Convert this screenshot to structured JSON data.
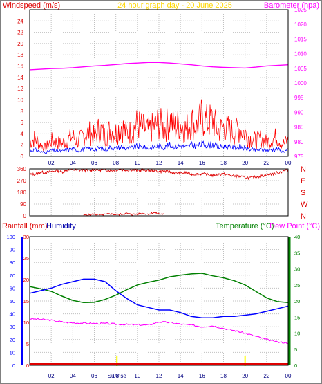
{
  "header": {
    "left_label": "Windspeed (m/s)",
    "center_label": "24 hour graph day - 20 June 2025",
    "right_label": "Barometer (hpa)"
  },
  "bottom_header": {
    "rain_label": "Rainfall (mm)",
    "humidity_label": "Humidity",
    "temp_label": "Temperature (°C)",
    "dew_label": "Dew Point (°C)"
  },
  "x_ticks": [
    "02",
    "04",
    "06",
    "08",
    "10",
    "12",
    "14",
    "16",
    "18",
    "20",
    "22",
    "00"
  ],
  "sunrise_label": "Sunrise",
  "colors": {
    "frame": "#000000",
    "grid": "#c0c0c0",
    "wind_gust": "#ff0000",
    "wind_avg": "#0000ff",
    "pressure": "#ff00ff",
    "direction": "#dd0000",
    "temperature": "#008000",
    "humidity": "#0000ff",
    "dew": "#ff00ff",
    "rain": "#dd0000",
    "sun_marker": "#ffff00",
    "title": "#ffd700"
  },
  "chart_data": [
    {
      "type": "line",
      "name": "wind-pressure",
      "x_unit": "hour",
      "xlim": [
        0,
        24
      ],
      "y_left": {
        "label": "Windspeed (m/s)",
        "lim": [
          0,
          26
        ],
        "ticks": [
          0,
          2,
          4,
          6,
          8,
          10,
          12,
          14,
          16,
          18,
          20,
          22,
          24
        ]
      },
      "y_right": {
        "label": "Barometer (hpa)",
        "lim": [
          975,
          1025
        ],
        "ticks": [
          975,
          980,
          985,
          990,
          995,
          1000,
          1005,
          1010,
          1015,
          1020,
          1025
        ]
      },
      "grid": true,
      "series": [
        {
          "name": "gust",
          "axis": "left",
          "x": [
            0,
            0.5,
            1,
            1.5,
            2,
            2.5,
            3,
            3.5,
            4,
            4.5,
            5,
            5.5,
            6,
            6.5,
            7,
            7.5,
            8,
            8.5,
            9,
            9.5,
            10,
            10.5,
            11,
            11.5,
            12,
            12.5,
            13,
            13.5,
            14,
            14.5,
            15,
            15.5,
            16,
            16.5,
            17,
            17.5,
            18,
            18.5,
            19,
            19.5,
            20,
            20.5,
            21,
            21.5,
            22,
            22.5,
            23,
            23.5,
            24
          ],
          "values": [
            2.5,
            3.2,
            2.0,
            1.5,
            2.8,
            2.5,
            2.2,
            3.0,
            3.5,
            2.5,
            3.8,
            4.2,
            3.5,
            5.0,
            3.5,
            4.8,
            4.2,
            5.5,
            4.0,
            4.5,
            5.8,
            5.0,
            4.5,
            5.2,
            6.0,
            4.8,
            6.5,
            5.2,
            5.8,
            4.8,
            6.2,
            5.2,
            7.0,
            6.0,
            6.5,
            4.5,
            5.2,
            4.8,
            4.2,
            5.0,
            4.0,
            3.2,
            2.8,
            3.2,
            2.5,
            3.0,
            3.5,
            2.2,
            2.8
          ]
        },
        {
          "name": "average",
          "axis": "left",
          "x": [
            0,
            0.5,
            1,
            1.5,
            2,
            2.5,
            3,
            3.5,
            4,
            4.5,
            5,
            5.5,
            6,
            6.5,
            7,
            7.5,
            8,
            8.5,
            9,
            9.5,
            10,
            10.5,
            11,
            11.5,
            12,
            12.5,
            13,
            13.5,
            14,
            14.5,
            15,
            15.5,
            16,
            16.5,
            17,
            17.5,
            18,
            18.5,
            19,
            19.5,
            20,
            20.5,
            21,
            21.5,
            22,
            22.5,
            23,
            23.5,
            24
          ],
          "values": [
            1.0,
            1.2,
            0.8,
            0.7,
            1.1,
            1.0,
            0.9,
            1.2,
            1.3,
            1.0,
            1.3,
            1.4,
            1.2,
            1.5,
            1.2,
            1.6,
            1.4,
            1.7,
            1.3,
            1.5,
            1.8,
            1.6,
            1.4,
            1.7,
            1.9,
            1.6,
            2.0,
            1.7,
            1.9,
            1.6,
            2.0,
            1.8,
            2.2,
            2.0,
            2.1,
            1.6,
            1.8,
            1.6,
            1.5,
            1.7,
            1.4,
            1.2,
            1.1,
            1.2,
            1.0,
            1.2,
            1.3,
            0.9,
            1.1
          ]
        },
        {
          "name": "pressure",
          "axis": "right",
          "x": [
            0,
            1,
            2,
            3,
            4,
            5,
            6,
            7,
            8,
            9,
            10,
            11,
            12,
            13,
            14,
            15,
            16,
            17,
            18,
            19,
            20,
            21,
            22,
            23,
            24
          ],
          "values": [
            1004.5,
            1004.7,
            1004.9,
            1005.0,
            1005.2,
            1005.5,
            1005.8,
            1006.0,
            1006.3,
            1006.6,
            1006.8,
            1007.0,
            1007.0,
            1006.8,
            1006.5,
            1006.2,
            1005.8,
            1005.5,
            1005.3,
            1005.2,
            1005.1,
            1005.4,
            1005.8,
            1006.0,
            1006.2
          ]
        }
      ]
    },
    {
      "type": "scatter",
      "name": "wind-direction",
      "x_unit": "hour",
      "xlim": [
        0,
        24
      ],
      "y_left": {
        "lim": [
          0,
          360
        ],
        "ticks": [
          0,
          90,
          180,
          270,
          360
        ]
      },
      "y_right_labels": [
        "N",
        "W",
        "S",
        "E",
        "N"
      ],
      "grid": true,
      "series": [
        {
          "name": "direction",
          "x": [
            0,
            0.5,
            1,
            1.5,
            2,
            2.5,
            3,
            3.5,
            4,
            4.5,
            5,
            5.5,
            6,
            6.5,
            7,
            7.5,
            8,
            8.5,
            9,
            9.5,
            10,
            10.5,
            11,
            11.5,
            12,
            12.5,
            13,
            13.5,
            14,
            14.5,
            15,
            15.5,
            16,
            16.5,
            17,
            17.5,
            18,
            18.5,
            19,
            19.5,
            20,
            20.5,
            21,
            21.5,
            22,
            22.5,
            23,
            23.5,
            24
          ],
          "values": [
            315,
            320,
            335,
            330,
            340,
            345,
            335,
            350,
            355,
            348,
            352,
            345,
            358,
            350,
            355,
            348,
            352,
            356,
            350,
            354,
            347,
            352,
            345,
            350,
            338,
            342,
            335,
            330,
            325,
            332,
            320,
            318,
            322,
            315,
            310,
            318,
            320,
            312,
            305,
            300,
            295,
            290,
            298,
            305,
            315,
            320,
            330,
            340,
            355
          ]
        },
        {
          "name": "north-crossings",
          "x": [
            5.0,
            5.5,
            6.0,
            6.5,
            7.0,
            7.5,
            8.0,
            8.5,
            9.0,
            9.5,
            10.0,
            10.5,
            11.0,
            11.5,
            12.0,
            12.5
          ],
          "values": [
            5,
            8,
            12,
            6,
            10,
            15,
            8,
            12,
            18,
            10,
            14,
            20,
            12,
            25,
            16,
            10
          ]
        }
      ]
    },
    {
      "type": "line",
      "name": "temperature-humidity",
      "x_unit": "hour",
      "xlim": [
        0,
        24
      ],
      "y_rain": {
        "label": "Rainfall (mm)",
        "lim": [
          0,
          30
        ],
        "ticks": [
          0,
          5,
          10,
          15,
          20,
          25,
          30
        ]
      },
      "y_humidity": {
        "label": "Humidity",
        "lim": [
          0,
          100
        ],
        "ticks": [
          0,
          10,
          20,
          30,
          40,
          50,
          60,
          70,
          80,
          90,
          100
        ]
      },
      "y_temperature": {
        "label": "Temperature (°C)",
        "lim": [
          0,
          40
        ],
        "ticks": [
          0,
          5,
          10,
          15,
          20,
          25,
          30,
          35,
          40
        ]
      },
      "grid": true,
      "series": [
        {
          "name": "temperature",
          "axis": "temperature",
          "x": [
            0,
            1,
            2,
            3,
            4,
            5,
            6,
            7,
            8,
            9,
            10,
            11,
            12,
            13,
            14,
            15,
            16,
            17,
            18,
            19,
            20,
            21,
            22,
            23,
            24
          ],
          "values": [
            24.5,
            23.8,
            23.0,
            21.5,
            20.2,
            19.5,
            19.6,
            20.5,
            21.8,
            23.5,
            25.0,
            25.8,
            26.5,
            27.5,
            28.0,
            28.4,
            28.6,
            27.8,
            27.2,
            26.3,
            25.0,
            23.0,
            21.0,
            19.8,
            19.5
          ]
        },
        {
          "name": "humidity",
          "axis": "humidity",
          "x": [
            0,
            1,
            2,
            3,
            4,
            5,
            6,
            7,
            8,
            9,
            10,
            11,
            12,
            13,
            14,
            15,
            16,
            17,
            18,
            19,
            20,
            21,
            22,
            23,
            24
          ],
          "values": [
            56,
            58,
            60,
            63,
            65,
            67,
            67,
            65,
            58,
            52,
            47,
            45,
            43,
            43,
            41,
            38,
            37,
            37,
            38,
            38,
            39,
            40,
            42,
            44,
            46
          ]
        },
        {
          "name": "dew point",
          "axis": "temperature",
          "x": [
            0,
            1,
            2,
            3,
            4,
            5,
            6,
            7,
            8,
            9,
            10,
            11,
            12,
            13,
            14,
            15,
            16,
            17,
            18,
            19,
            20,
            21,
            22,
            23,
            24
          ],
          "values": [
            14.5,
            14.3,
            14.0,
            13.5,
            13.2,
            13.1,
            13.0,
            13.0,
            12.8,
            12.7,
            12.6,
            12.5,
            13.5,
            13.3,
            12.8,
            12.5,
            12.0,
            12.3,
            11.5,
            10.8,
            10.0,
            9.0,
            8.0,
            7.2,
            7.0
          ]
        },
        {
          "name": "rainfall",
          "axis": "rain",
          "x": [
            0,
            24
          ],
          "values": [
            0,
            0
          ]
        }
      ],
      "annotations": [
        {
          "label": "Sunrise",
          "x": 8.1
        },
        {
          "x": 20.0
        }
      ]
    }
  ]
}
